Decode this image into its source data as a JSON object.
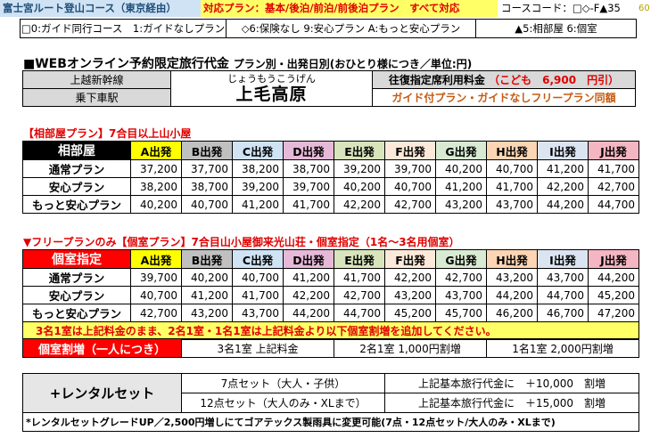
{
  "header": {
    "route": "富士宮ルート登山コース（東京経由）",
    "plans": "対応プラン：基本/後泊/前泊/前後泊プラン　すべて対応",
    "course_code": "コースコード：□◇-F▲35",
    "number": "60"
  },
  "guide_legend": {
    "guide": "□0:ガイド同行コース　1:ガイドなしプラン",
    "insurance": "◇6:保険なし 9:安心プラン A:もっと安心プラン",
    "room": "▲5:相部屋 6:個室"
  },
  "title": {
    "main": "■WEBオンライン予約限定旅行代金",
    "sub": "プラン別・出発日別(おひとり様につき／単位:円)"
  },
  "station": {
    "line": "上越新幹線",
    "board_label": "乗下車駅",
    "reading": "じょうもうこうげん",
    "name": "上毛高原",
    "fare_label": "往復指定席利用料金",
    "child_fare": "（こども　6,900　円引）",
    "guide_note": "ガイド付プラン・ガイドなしフリープラン同額"
  },
  "section1": {
    "title": "【相部屋プラン】7合目以上山小屋",
    "head": "相部屋",
    "departures": [
      "A出発",
      "B出発",
      "C出発",
      "D出発",
      "E出発",
      "F出発",
      "G出発",
      "H出発",
      "I出発",
      "J出発"
    ],
    "rows": [
      {
        "plan": "通常プラン",
        "values": [
          "37,200",
          "37,700",
          "38,200",
          "38,700",
          "39,200",
          "39,700",
          "40,200",
          "40,700",
          "41,200",
          "41,700"
        ]
      },
      {
        "plan": "安心プラン",
        "values": [
          "38,200",
          "38,700",
          "39,200",
          "39,700",
          "40,200",
          "40,700",
          "41,200",
          "41,700",
          "42,200",
          "42,700"
        ]
      },
      {
        "plan": "もっと安心プラン",
        "values": [
          "40,200",
          "40,700",
          "41,200",
          "41,700",
          "42,200",
          "42,700",
          "43,200",
          "43,700",
          "44,200",
          "44,700"
        ]
      }
    ]
  },
  "section2": {
    "title": "▼フリープランのみ【個室プラン】7合目山小屋御来光山荘・個室指定（1名～3名用個室）",
    "head": "個室指定",
    "departures": [
      "A出発",
      "B出発",
      "C出発",
      "D出発",
      "E出発",
      "F出発",
      "G出発",
      "H出発",
      "I出発",
      "J出発"
    ],
    "rows": [
      {
        "plan": "通常プラン",
        "values": [
          "39,700",
          "40,200",
          "40,700",
          "41,200",
          "41,700",
          "42,200",
          "42,700",
          "43,200",
          "43,700",
          "44,200"
        ]
      },
      {
        "plan": "安心プラン",
        "values": [
          "40,700",
          "41,200",
          "41,700",
          "42,200",
          "42,700",
          "43,200",
          "43,700",
          "44,200",
          "44,700",
          "45,200"
        ]
      },
      {
        "plan": "もっと安心プラン",
        "values": [
          "42,700",
          "43,200",
          "43,700",
          "44,200",
          "44,700",
          "45,200",
          "45,700",
          "46,200",
          "46,700",
          "47,200"
        ]
      }
    ],
    "note": "3名1室は上記料金のまま、2名1室・1名1室は上記料金より以下個室割増を追加してください。"
  },
  "surcharge": {
    "label": "個室割増（一人につき）",
    "three": "3名1室 上記料金",
    "two": "2名1室 1,000円割増",
    "one": "1名1室 2,000円割増"
  },
  "rental": {
    "label": "+レンタルセット",
    "set7": "7点セット（大人・子供）",
    "set7_price": "上記基本旅行代金に　＋10,000　割増",
    "set12": "12点セット（大人のみ・XLまで）",
    "set12_price": "上記基本旅行代金に　＋15,000　割増",
    "note": "*レンタルセットグレードUP／2,500円増しにてゴアテックス製雨具に変更可能(7点・12点セット/大人のみ・XLまで)"
  },
  "colors": {
    "dep_header": [
      "#ffff00",
      "#c0c0c0",
      "#cfe3f4",
      "#e6b9d8",
      "#d8e4bc",
      "#fde9d9",
      "#d9ead3",
      "#fcd5b4",
      "#dbe5f1",
      "#f4b6c2"
    ],
    "section1_head": "#000000",
    "section2_head": "#ff0000",
    "accent_red": "#e00000",
    "highlight_yellow": "#ffff66"
  }
}
